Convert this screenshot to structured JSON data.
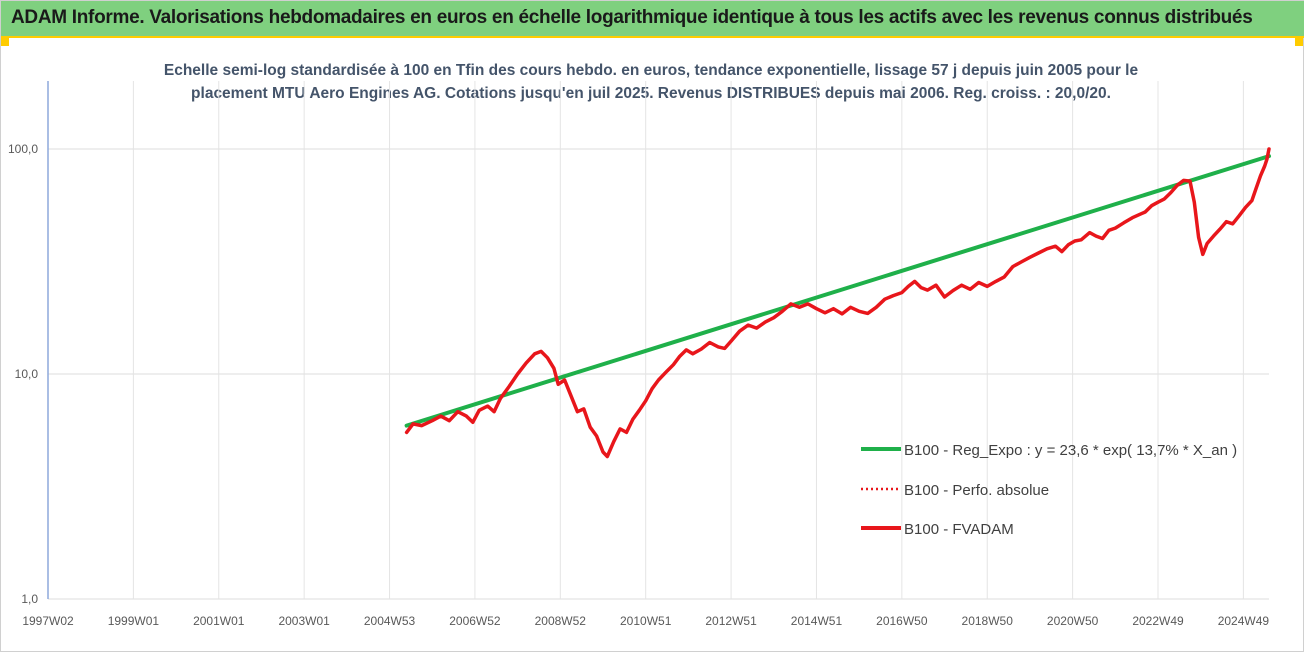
{
  "banner": {
    "title": "ADAM Informe. Valorisations hebdomadaires en euros en échelle logarithmique identique à tous les actifs avec les revenus connus distribués"
  },
  "colors": {
    "banner_bg": "#7fd07f",
    "accent": "#ffcc00",
    "regression": "#1fb04a",
    "fvadam": "#e8161b",
    "perfo": "#e8161b"
  },
  "chart_data": {
    "type": "line",
    "title_lines": [
      "Echelle semi-log standardisée à 100 en Tfin des cours hebdo. en euros, tendance exponentielle, lissage 57 j depuis juin 2005 pour le",
      "placement MTU Aero Engines AG. Cotations jusqu'en juil 2025. Revenus DISTRIBUES depuis mai 2006. Reg. croiss. : 20,0/20."
    ],
    "y_scale": "log",
    "ylim": [
      1,
      200
    ],
    "y_ticks": [
      {
        "value": 1,
        "label": "1,0"
      },
      {
        "value": 10,
        "label": "10,0"
      },
      {
        "value": 100,
        "label": "100,0"
      }
    ],
    "xlim": [
      1997.0,
      2025.6
    ],
    "x_ticks": [
      {
        "value": 1997.0,
        "label": "1997W02"
      },
      {
        "value": 1999.0,
        "label": "1999W01"
      },
      {
        "value": 2001.0,
        "label": "2001W01"
      },
      {
        "value": 2003.0,
        "label": "2003W01"
      },
      {
        "value": 2005.0,
        "label": "2004W53"
      },
      {
        "value": 2007.0,
        "label": "2006W52"
      },
      {
        "value": 2009.0,
        "label": "2008W52"
      },
      {
        "value": 2011.0,
        "label": "2010W51"
      },
      {
        "value": 2013.0,
        "label": "2012W51"
      },
      {
        "value": 2015.0,
        "label": "2014W51"
      },
      {
        "value": 2017.0,
        "label": "2016W50"
      },
      {
        "value": 2019.0,
        "label": "2018W50"
      },
      {
        "value": 2021.0,
        "label": "2020W50"
      },
      {
        "value": 2023.0,
        "label": "2022W49"
      },
      {
        "value": 2025.0,
        "label": "2024W49"
      }
    ],
    "legend_position": "right",
    "series": [
      {
        "name": "B100 - Reg_Expo : y = 23,6 * exp( 13,7% *  X_an )",
        "style": "solid-thick",
        "color": "#1fb04a",
        "points": [
          [
            2005.4,
            5.9
          ],
          [
            2025.6,
            93
          ]
        ]
      },
      {
        "name": "B100 - Perfo. absolue",
        "style": "dotted",
        "color": "#e8161b",
        "points": []
      },
      {
        "name": "B100 - FVADAM",
        "style": "solid",
        "color": "#e8161b",
        "points": [
          [
            2005.4,
            5.5
          ],
          [
            2005.55,
            6.0
          ],
          [
            2005.75,
            5.9
          ],
          [
            2006.0,
            6.2
          ],
          [
            2006.2,
            6.5
          ],
          [
            2006.4,
            6.2
          ],
          [
            2006.6,
            6.8
          ],
          [
            2006.8,
            6.5
          ],
          [
            2006.95,
            6.1
          ],
          [
            2007.1,
            6.9
          ],
          [
            2007.3,
            7.2
          ],
          [
            2007.45,
            6.8
          ],
          [
            2007.6,
            7.8
          ],
          [
            2007.8,
            8.8
          ],
          [
            2008.0,
            10.0
          ],
          [
            2008.2,
            11.2
          ],
          [
            2008.4,
            12.3
          ],
          [
            2008.55,
            12.6
          ],
          [
            2008.7,
            11.8
          ],
          [
            2008.85,
            10.6
          ],
          [
            2008.95,
            9.0
          ],
          [
            2009.1,
            9.4
          ],
          [
            2009.25,
            8.0
          ],
          [
            2009.4,
            6.8
          ],
          [
            2009.55,
            7.0
          ],
          [
            2009.7,
            5.8
          ],
          [
            2009.85,
            5.3
          ],
          [
            2010.0,
            4.5
          ],
          [
            2010.1,
            4.3
          ],
          [
            2010.25,
            5.0
          ],
          [
            2010.4,
            5.7
          ],
          [
            2010.55,
            5.5
          ],
          [
            2010.7,
            6.3
          ],
          [
            2010.85,
            6.9
          ],
          [
            2011.0,
            7.6
          ],
          [
            2011.15,
            8.6
          ],
          [
            2011.3,
            9.4
          ],
          [
            2011.5,
            10.3
          ],
          [
            2011.65,
            11.0
          ],
          [
            2011.8,
            12.0
          ],
          [
            2011.95,
            12.8
          ],
          [
            2012.1,
            12.3
          ],
          [
            2012.3,
            12.9
          ],
          [
            2012.5,
            13.8
          ],
          [
            2012.7,
            13.2
          ],
          [
            2012.85,
            13.0
          ],
          [
            2013.0,
            14.0
          ],
          [
            2013.2,
            15.5
          ],
          [
            2013.4,
            16.5
          ],
          [
            2013.6,
            16.0
          ],
          [
            2013.8,
            17.0
          ],
          [
            2014.0,
            17.8
          ],
          [
            2014.2,
            19.0
          ],
          [
            2014.4,
            20.5
          ],
          [
            2014.6,
            19.8
          ],
          [
            2014.8,
            20.5
          ],
          [
            2015.0,
            19.5
          ],
          [
            2015.2,
            18.7
          ],
          [
            2015.4,
            19.5
          ],
          [
            2015.6,
            18.5
          ],
          [
            2015.8,
            19.8
          ],
          [
            2016.0,
            19.0
          ],
          [
            2016.2,
            18.6
          ],
          [
            2016.4,
            19.8
          ],
          [
            2016.6,
            21.5
          ],
          [
            2016.8,
            22.3
          ],
          [
            2017.0,
            23.0
          ],
          [
            2017.15,
            24.5
          ],
          [
            2017.3,
            25.8
          ],
          [
            2017.45,
            24.2
          ],
          [
            2017.6,
            23.6
          ],
          [
            2017.8,
            24.8
          ],
          [
            2018.0,
            22.0
          ],
          [
            2018.2,
            23.5
          ],
          [
            2018.4,
            24.8
          ],
          [
            2018.6,
            23.8
          ],
          [
            2018.8,
            25.5
          ],
          [
            2019.0,
            24.5
          ],
          [
            2019.2,
            25.8
          ],
          [
            2019.4,
            27.0
          ],
          [
            2019.6,
            30.0
          ],
          [
            2019.8,
            31.5
          ],
          [
            2020.0,
            33.0
          ],
          [
            2020.2,
            34.5
          ],
          [
            2020.4,
            36.0
          ],
          [
            2020.6,
            37.0
          ],
          [
            2020.75,
            35.0
          ],
          [
            2020.9,
            37.5
          ],
          [
            2021.05,
            39.0
          ],
          [
            2021.2,
            39.5
          ],
          [
            2021.4,
            42.5
          ],
          [
            2021.55,
            41.0
          ],
          [
            2021.7,
            40.0
          ],
          [
            2021.85,
            43.5
          ],
          [
            2022.0,
            44.5
          ],
          [
            2022.2,
            47.0
          ],
          [
            2022.4,
            49.5
          ],
          [
            2022.55,
            51.0
          ],
          [
            2022.7,
            52.5
          ],
          [
            2022.85,
            56.0
          ],
          [
            2023.0,
            58.0
          ],
          [
            2023.15,
            60.0
          ],
          [
            2023.3,
            64.0
          ],
          [
            2023.45,
            69.0
          ],
          [
            2023.6,
            72.5
          ],
          [
            2023.75,
            72.0
          ],
          [
            2023.85,
            58.0
          ],
          [
            2023.95,
            40.5
          ],
          [
            2024.05,
            34.0
          ],
          [
            2024.15,
            38.0
          ],
          [
            2024.3,
            41.0
          ],
          [
            2024.45,
            44.0
          ],
          [
            2024.6,
            47.5
          ],
          [
            2024.75,
            46.5
          ],
          [
            2024.9,
            50.5
          ],
          [
            2025.05,
            55.0
          ],
          [
            2025.2,
            59.0
          ],
          [
            2025.3,
            67.0
          ],
          [
            2025.4,
            76.0
          ],
          [
            2025.5,
            84.0
          ],
          [
            2025.55,
            90.0
          ],
          [
            2025.6,
            100.0
          ]
        ]
      }
    ]
  }
}
